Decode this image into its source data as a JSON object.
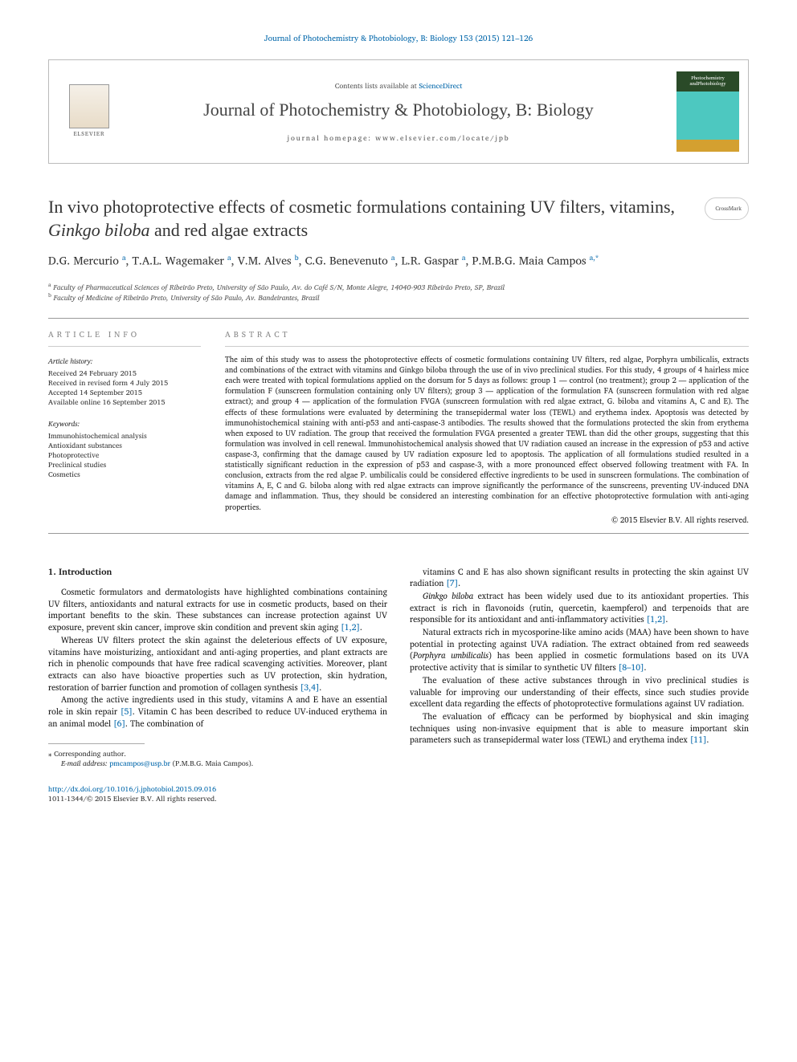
{
  "header": {
    "citation": "Journal of Photochemistry & Photobiology, B: Biology 153 (2015) 121–126",
    "contents_prefix": "Contents lists available at ",
    "contents_link": "ScienceDirect",
    "journal_name": "Journal of Photochemistry & Photobiology, B: Biology",
    "homepage_prefix": "journal homepage: ",
    "homepage": "www.elsevier.com/locate/jpb",
    "elsevier_label": "ELSEVIER",
    "cover_title_1": "Photochemistry",
    "cover_title_2": "andPhotobiology"
  },
  "crossmark": {
    "label": "CrossMark"
  },
  "title": {
    "pre_italic": "In vivo photoprotective effects of cosmetic formulations containing UV filters, vitamins, ",
    "italic": "Ginkgo biloba",
    "post_italic": " and red algae extracts"
  },
  "authors_line": "D.G. Mercurio <sup>a</sup>, T.A.L. Wagemaker <sup>a</sup>, V.M. Alves <sup>b</sup>, C.G. Benevenuto <sup>a</sup>, L.R. Gaspar <sup>a</sup>, P.M.B.G. Maia Campos <sup>a,*</sup>",
  "affiliations": [
    {
      "marker": "a",
      "text": "Faculty of Pharmaceutical Sciences of Ribeirão Preto, University of São Paulo, Av. do Café S/N, Monte Alegre, 14040-903 Ribeirão Preto, SP, Brazil"
    },
    {
      "marker": "b",
      "text": "Faculty of Medicine of Ribeirão Preto, University of São Paulo, Av. Bandeirantes, Brazil"
    }
  ],
  "sections": {
    "article_info_heading": "article info",
    "abstract_heading": "abstract"
  },
  "article_history": {
    "label": "Article history:",
    "items": [
      "Received 24 February 2015",
      "Received in revised form 4 July 2015",
      "Accepted 14 September 2015",
      "Available online 16 September 2015"
    ]
  },
  "keywords": {
    "label": "Keywords:",
    "items": [
      "Immunohistochemical analysis",
      "Antioxidant substances",
      "Photoprotective",
      "Preclinical studies",
      "Cosmetics"
    ]
  },
  "abstract": {
    "text": "The aim of this study was to assess the photoprotective effects of cosmetic formulations containing UV filters, red algae, Porphyra umbilicalis, extracts and combinations of the extract with vitamins and Ginkgo biloba through the use of in vivo preclinical studies. For this study, 4 groups of 4 hairless mice each were treated with topical formulations applied on the dorsum for 5 days as follows: group 1 — control (no treatment); group 2 — application of the formulation F (sunscreen formulation containing only UV filters); group 3 — application of the formulation FA (sunscreen formulation with red algae extract); and group 4 — application of the formulation FVGA (sunscreen formulation with red algae extract, G. biloba and vitamins A, C and E). The effects of these formulations were evaluated by determining the transepidermal water loss (TEWL) and erythema index. Apoptosis was detected by immunohistochemical staining with anti-p53 and anti-caspase-3 antibodies. The results showed that the formulations protected the skin from erythema when exposed to UV radiation. The group that received the formulation FVGA presented a greater TEWL than did the other groups, suggesting that this formulation was involved in cell renewal. Immunohistochemical analysis showed that UV radiation caused an increase in the expression of p53 and active caspase-3, confirming that the damage caused by UV radiation exposure led to apoptosis. The application of all formulations studied resulted in a statistically significant reduction in the expression of p53 and caspase-3, with a more pronounced effect observed following treatment with FA. In conclusion, extracts from the red algae P. umbilicalis could be considered effective ingredients to be used in sunscreen formulations. The combination of vitamins A, E, C and G. biloba along with red algae extracts can improve significantly the performance of the sunscreens, preventing UV-induced DNA damage and inflammation. Thus, they should be considered an interesting combination for an effective photoprotective formulation with anti-aging properties.",
    "copyright": "© 2015 Elsevier B.V. All rights reserved."
  },
  "body": {
    "section_heading": "1. Introduction",
    "col1": [
      "Cosmetic formulators and dermatologists have highlighted combinations containing UV filters, antioxidants and natural extracts for use in cosmetic products, based on their important benefits to the skin. These substances can increase protection against UV exposure, prevent skin cancer, improve skin condition and prevent skin aging [1,2].",
      "Whereas UV filters protect the skin against the deleterious effects of UV exposure, vitamins have moisturizing, antioxidant and anti-aging properties, and plant extracts are rich in phenolic compounds that have free radical scavenging activities. Moreover, plant extracts can also have bioactive properties such as UV protection, skin hydration, restoration of barrier function and promotion of collagen synthesis [3,4].",
      "Among the active ingredients used in this study, vitamins A and E have an essential role in skin repair [5]. Vitamin C has been described to reduce UV-induced erythema in an animal model [6]. The combination of"
    ],
    "col2": [
      "vitamins C and E has also shown significant results in protecting the skin against UV radiation [7].",
      "Ginkgo biloba extract has been widely used due to its antioxidant properties. This extract is rich in flavonoids (rutin, quercetin, kaempferol) and terpenoids that are responsible for its antioxidant and anti-inflammatory activities [1,2].",
      "Natural extracts rich in mycosporine-like amino acids (MAA) have been shown to have potential in protecting against UVA radiation. The extract obtained from red seaweeds (Porphyra umbilicalis) has been applied in cosmetic formulations based on its UVA protective activity that is similar to synthetic UV filters [8–10].",
      "The evaluation of these active substances through in vivo preclinical studies is valuable for improving our understanding of their effects, since such studies provide excellent data regarding the effects of photoprotective formulations against UV radiation.",
      "The evaluation of efficacy can be performed by biophysical and skin imaging techniques using non-invasive equipment that is able to measure important skin parameters such as transepidermal water loss (TEWL) and erythema index [11]."
    ]
  },
  "footer": {
    "corresponding_label": "⁎ Corresponding author.",
    "email_label": "E-mail address: ",
    "email": "pmcampos@usp.br",
    "email_name": " (P.M.B.G. Maia Campos).",
    "doi": "http://dx.doi.org/10.1016/j.jphotobiol.2015.09.016",
    "issn": "1011-1344/© 2015 Elsevier B.V. All rights reserved."
  },
  "colors": {
    "link": "#0066aa",
    "text": "#1a1a1a",
    "muted": "#555555",
    "border": "#bbbbbb"
  },
  "typography": {
    "body_fontsize_pt": 10.5,
    "abstract_fontsize_pt": 9.5,
    "title_fontsize_pt": 22,
    "authors_fontsize_pt": 14,
    "info_fontsize_pt": 9
  }
}
